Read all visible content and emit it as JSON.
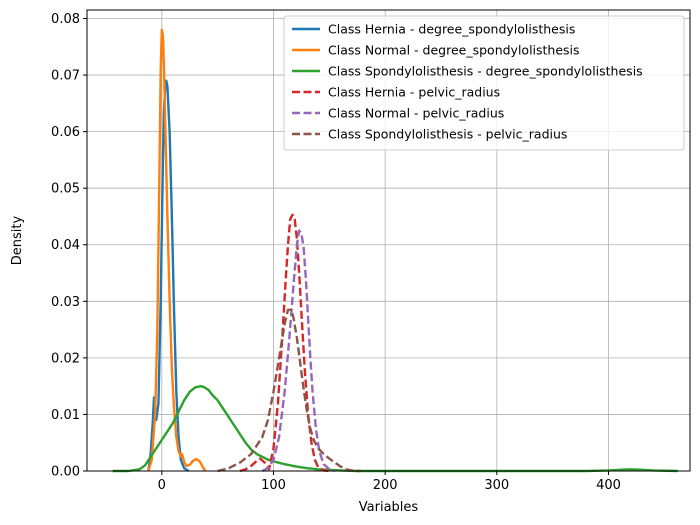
{
  "chart_data": {
    "type": "line",
    "title": "",
    "xlabel": "Variables",
    "ylabel": "Density",
    "xlim": [
      -67,
      473
    ],
    "ylim": [
      0,
      0.0815
    ],
    "xticks": [
      0,
      100,
      200,
      300,
      400
    ],
    "yticks": [
      0.0,
      0.01,
      0.02,
      0.03,
      0.04,
      0.05,
      0.06,
      0.07,
      0.08
    ],
    "xtick_labels": [
      "0",
      "100",
      "200",
      "300",
      "400"
    ],
    "ytick_labels": [
      "0.00",
      "0.01",
      "0.02",
      "0.03",
      "0.04",
      "0.05",
      "0.06",
      "0.07",
      "0.08"
    ],
    "grid": true,
    "legend_position": "top-right",
    "series": [
      {
        "name": "Class Hernia - degree_spondylolisthesis",
        "color": "#1f77b4",
        "dash": "solid",
        "x": [
          -12,
          -10,
          -8,
          -7,
          -5,
          -3,
          -1,
          1,
          2,
          3,
          4,
          5,
          7,
          9,
          11,
          13,
          15,
          17,
          20,
          24
        ],
        "y": [
          0.0,
          0.003,
          0.009,
          0.013,
          0.009,
          0.012,
          0.03,
          0.055,
          0.064,
          0.068,
          0.069,
          0.068,
          0.06,
          0.045,
          0.028,
          0.014,
          0.006,
          0.002,
          0.0005,
          0.0
        ]
      },
      {
        "name": "Class Normal - degree_spondylolisthesis",
        "color": "#ff7f0e",
        "dash": "solid",
        "x": [
          -12,
          -9,
          -6,
          -4,
          -2,
          -1,
          0,
          1,
          2,
          3,
          5,
          7,
          9,
          11,
          13,
          15,
          17,
          18,
          19,
          20,
          22,
          25,
          28,
          31,
          34,
          37,
          39
        ],
        "y": [
          0.0,
          0.002,
          0.01,
          0.025,
          0.055,
          0.071,
          0.078,
          0.077,
          0.071,
          0.062,
          0.045,
          0.03,
          0.018,
          0.011,
          0.006,
          0.0035,
          0.0026,
          0.003,
          0.0024,
          0.0016,
          0.0009,
          0.0011,
          0.0018,
          0.0021,
          0.0017,
          0.0006,
          0.0
        ]
      },
      {
        "name": "Class Spondylolisthesis - degree_spondylolisthesis",
        "color": "#2ca02c",
        "dash": "solid",
        "x": [
          -44,
          -30,
          -20,
          -15,
          -10,
          -5,
          0,
          5,
          10,
          15,
          20,
          25,
          30,
          35,
          38,
          42,
          45,
          50,
          55,
          60,
          65,
          70,
          75,
          80,
          85,
          90,
          95,
          100,
          110,
          120,
          130,
          140,
          150,
          160,
          175,
          200,
          250,
          300,
          350,
          380,
          400,
          410,
          420,
          430,
          440,
          462
        ],
        "y": [
          0.0,
          0.0,
          0.0003,
          0.001,
          0.0025,
          0.004,
          0.0055,
          0.007,
          0.0085,
          0.0105,
          0.0125,
          0.014,
          0.0148,
          0.015,
          0.0148,
          0.0143,
          0.0135,
          0.0125,
          0.011,
          0.0095,
          0.008,
          0.0065,
          0.005,
          0.0038,
          0.003,
          0.0025,
          0.002,
          0.0017,
          0.0012,
          0.0008,
          0.0005,
          0.0003,
          0.0002,
          0.0001,
          0.0,
          0.0,
          0.0,
          0.0,
          0.0,
          0.0,
          0.0001,
          0.0002,
          0.0003,
          0.0002,
          0.0001,
          0.0
        ]
      },
      {
        "name": "Class Hernia - pelvic_radius",
        "color": "#d62728",
        "dash": "dashed",
        "x": [
          70,
          75,
          80,
          84,
          88,
          92,
          96,
          100,
          104,
          108,
          111,
          113,
          115,
          117,
          119,
          121,
          123,
          125,
          128,
          131,
          134,
          137,
          140,
          145,
          150
        ],
        "y": [
          0.0,
          0.0003,
          0.0009,
          0.0016,
          0.0022,
          0.0015,
          0.0003,
          0.004,
          0.012,
          0.024,
          0.034,
          0.04,
          0.0445,
          0.0453,
          0.0445,
          0.041,
          0.035,
          0.028,
          0.018,
          0.01,
          0.005,
          0.002,
          0.0007,
          0.0001,
          0.0
        ]
      },
      {
        "name": "Class Normal - pelvic_radius",
        "color": "#9467bd",
        "dash": "dashed",
        "x": [
          90,
          95,
          100,
          105,
          110,
          114,
          118,
          121,
          123,
          125,
          127,
          129,
          131,
          133,
          135,
          138,
          141,
          145,
          150,
          155
        ],
        "y": [
          0.0,
          0.0005,
          0.002,
          0.006,
          0.014,
          0.023,
          0.033,
          0.04,
          0.0425,
          0.042,
          0.0395,
          0.034,
          0.027,
          0.02,
          0.014,
          0.0075,
          0.0035,
          0.0012,
          0.0003,
          0.0
        ]
      },
      {
        "name": "Class Spondylolisthesis - pelvic_radius",
        "color": "#8c564b",
        "dash": "dashed",
        "x": [
          50,
          60,
          70,
          80,
          90,
          95,
          100,
          105,
          110,
          113,
          116,
          118,
          121,
          124,
          127,
          130,
          133,
          136,
          140,
          145,
          150,
          155,
          160,
          165,
          170,
          178
        ],
        "y": [
          0.0,
          0.0005,
          0.0015,
          0.003,
          0.006,
          0.009,
          0.014,
          0.02,
          0.026,
          0.0285,
          0.0285,
          0.027,
          0.0235,
          0.019,
          0.0145,
          0.0105,
          0.0075,
          0.0055,
          0.004,
          0.003,
          0.0022,
          0.0015,
          0.0008,
          0.0003,
          0.0001,
          0.0
        ]
      }
    ]
  }
}
